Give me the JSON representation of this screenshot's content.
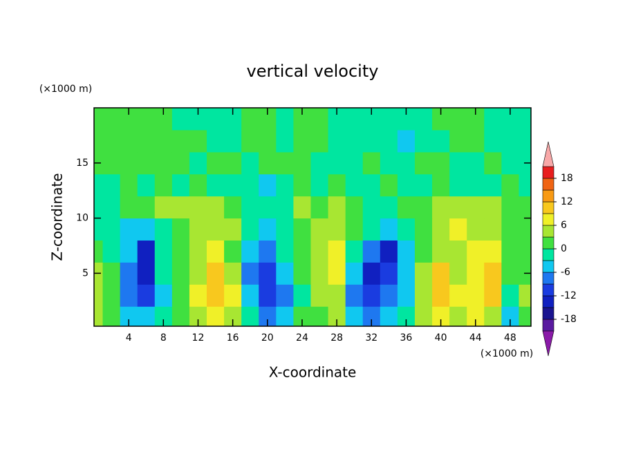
{
  "chart_data": {
    "type": "contour",
    "title": "vertical velocity",
    "xlabel": "X-coordinate",
    "ylabel": "Z-coordinate",
    "x_unit_label": "(×1000 m)",
    "y_unit_label": "(×1000 m)",
    "xlim": [
      0,
      50.4
    ],
    "ylim": [
      0.2,
      20
    ],
    "xticks": [
      4,
      8,
      12,
      16,
      20,
      24,
      28,
      32,
      36,
      40,
      44,
      48
    ],
    "yticks": [
      5,
      10,
      15
    ],
    "x": [
      0,
      2,
      4,
      6,
      8,
      10,
      12,
      14,
      16,
      18,
      20,
      22,
      24,
      26,
      28,
      30,
      32,
      34,
      36,
      38,
      40,
      42,
      44,
      46,
      48,
      50
    ],
    "z": [
      1,
      3,
      5,
      7,
      9,
      11,
      13,
      15,
      17,
      19
    ],
    "values": [
      [
        4,
        1,
        -4,
        -5,
        -3,
        2,
        4,
        7,
        4,
        -2,
        -8,
        -4,
        1,
        2,
        3,
        -4,
        -8,
        -5,
        -2,
        3,
        6,
        5,
        6,
        5,
        -4,
        2
      ],
      [
        5,
        2,
        -7,
        -10,
        -4,
        1,
        6,
        10,
        6,
        -5,
        -10,
        -8,
        -1,
        3,
        4,
        -8,
        -12,
        -9,
        -4,
        4,
        10,
        7,
        8,
        9,
        -2,
        3
      ],
      [
        4,
        1,
        -8,
        -13,
        -2,
        1,
        5,
        9,
        4,
        -7,
        -11,
        -6,
        0,
        4,
        6,
        -6,
        -13,
        -12,
        -5,
        4,
        11,
        5,
        7,
        10,
        1,
        2
      ],
      [
        1,
        -1,
        -6,
        -13,
        -3,
        2,
        5,
        6,
        2,
        -4,
        -9,
        -3,
        1,
        5,
        7,
        -2,
        -8,
        -14,
        -6,
        2,
        5,
        4,
        6,
        7,
        2,
        1
      ],
      [
        -2,
        -3,
        -4,
        -5,
        -3,
        1,
        4,
        5,
        3,
        -3,
        -6,
        -3,
        1,
        4,
        5,
        1,
        -3,
        -5,
        -2,
        1,
        4,
        6,
        5,
        5,
        2,
        1
      ],
      [
        -2,
        -1,
        1,
        2,
        3,
        5,
        3,
        4,
        2,
        -1,
        -3,
        -2,
        3,
        2,
        4,
        1,
        -1,
        -2,
        1,
        2,
        3,
        4,
        3,
        4,
        2,
        1
      ],
      [
        -1,
        -2,
        1,
        -1,
        2,
        -1,
        1,
        -2,
        -1,
        -2,
        -4,
        -2,
        1,
        -1,
        1,
        -2,
        -1,
        1,
        -1,
        -2,
        1,
        -1,
        -2,
        -1,
        1,
        -1
      ],
      [
        1,
        2,
        1,
        1,
        2,
        1,
        -1,
        1,
        1,
        -1,
        1,
        1,
        1,
        -1,
        -1,
        -2,
        1,
        -1,
        -2,
        1,
        1,
        -1,
        -1,
        1,
        -1,
        -2
      ],
      [
        1,
        1,
        2,
        1,
        1,
        1,
        1,
        -1,
        -1,
        1,
        1,
        -1,
        1,
        1,
        -1,
        -1,
        -2,
        -1,
        -4,
        -1,
        -1,
        1,
        1,
        -1,
        -1,
        -1
      ],
      [
        1,
        1,
        1,
        1,
        1,
        -1,
        -1,
        -1,
        -1,
        1,
        1,
        -1,
        1,
        1,
        -1,
        -1,
        -1,
        -1,
        -1,
        -1,
        1,
        1,
        1,
        -1,
        -1,
        -1
      ]
    ],
    "levels": [
      -21,
      -18,
      -15,
      -12,
      -9,
      -6,
      -3,
      0,
      3,
      6,
      9,
      12,
      15,
      18,
      21
    ],
    "colors": [
      "#8a1aa8",
      "#5a1aa0",
      "#1a1490",
      "#1020c0",
      "#1a3ce0",
      "#1e78f0",
      "#10c8f0",
      "#00e6a0",
      "#40e040",
      "#a8e632",
      "#f0f028",
      "#f8c81e",
      "#f89a14",
      "#f06414",
      "#e81e1e",
      "#f8a8a8"
    ],
    "colorbar_ticks": [
      -18,
      -12,
      -6,
      0,
      6,
      12,
      18
    ]
  }
}
